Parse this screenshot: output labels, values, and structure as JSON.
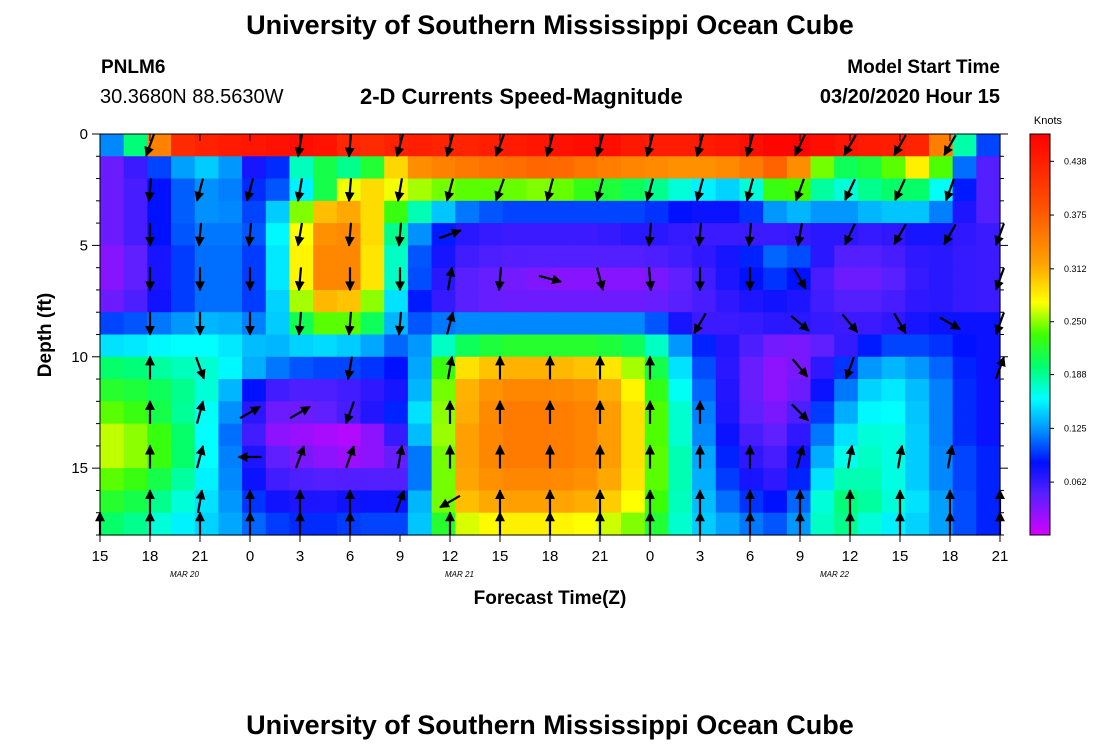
{
  "header": {
    "title": "University of Southern Mississippi Ocean Cube",
    "station_id": "PNLM6",
    "coordinates": "30.3680N 88.5630W",
    "subtitle": "2-D Currents Speed-Magnitude",
    "model_start_label": "Model Start Time",
    "model_start_value": "03/20/2020 Hour 15"
  },
  "footer": {
    "title": "University of Southern Mississippi Ocean Cube"
  },
  "chart_data": {
    "type": "heatmap",
    "xlabel": "Forecast Time(Z)",
    "ylabel": "Depth (ft)",
    "colorbar_label": "Knots",
    "x_ticks": [
      "15",
      "18",
      "21",
      "0",
      "3",
      "6",
      "9",
      "12",
      "15",
      "18",
      "21",
      "0",
      "3",
      "6",
      "9",
      "12",
      "15",
      "18",
      "21"
    ],
    "date_labels": [
      "MAR 20",
      "MAR 21",
      "MAR 22"
    ],
    "y_ticks": [
      0,
      5,
      10,
      15
    ],
    "ylim": [
      18,
      0
    ],
    "colorbar_ticks": [
      "0.062",
      "0.125",
      "0.188",
      "0.250",
      "0.312",
      "0.375",
      "0.438"
    ],
    "colorbar_range": [
      0,
      0.47
    ],
    "depth_rows_ft": [
      0.5,
      1.5,
      2.5,
      3.5,
      4.5,
      5.5,
      6.5,
      7.5,
      8.5,
      9.5,
      10.5,
      11.5,
      12.5,
      13.5,
      14.5,
      15.5,
      16.5,
      17.5
    ],
    "speed_knots_by_depth": [
      [
        0.12,
        0.42,
        0.44,
        0.45,
        0.46,
        0.42,
        0.44,
        0.43,
        0.44,
        0.45,
        0.46,
        0.44,
        0.44,
        0.45,
        0.47,
        0.45,
        0.44,
        0.43,
        0.1
      ],
      [
        0.04,
        0.12,
        0.15,
        0.05,
        0.22,
        0.18,
        0.33,
        0.35,
        0.36,
        0.37,
        0.35,
        0.34,
        0.33,
        0.34,
        0.38,
        0.2,
        0.22,
        0.3,
        0.05
      ],
      [
        0.04,
        0.1,
        0.13,
        0.08,
        0.18,
        0.3,
        0.26,
        0.24,
        0.24,
        0.25,
        0.22,
        0.2,
        0.16,
        0.14,
        0.26,
        0.16,
        0.2,
        0.2,
        0.05
      ],
      [
        0.04,
        0.1,
        0.13,
        0.09,
        0.3,
        0.32,
        0.2,
        0.12,
        0.1,
        0.1,
        0.1,
        0.1,
        0.08,
        0.08,
        0.14,
        0.12,
        0.14,
        0.14,
        0.05
      ],
      [
        0.04,
        0.1,
        0.12,
        0.1,
        0.33,
        0.34,
        0.14,
        0.07,
        0.06,
        0.06,
        0.06,
        0.07,
        0.06,
        0.06,
        0.06,
        0.07,
        0.06,
        0.08,
        0.06
      ],
      [
        0.03,
        0.09,
        0.12,
        0.09,
        0.34,
        0.34,
        0.12,
        0.06,
        0.05,
        0.05,
        0.05,
        0.05,
        0.06,
        0.08,
        0.12,
        0.05,
        0.05,
        0.07,
        0.06
      ],
      [
        0.03,
        0.09,
        0.12,
        0.09,
        0.34,
        0.34,
        0.12,
        0.05,
        0.04,
        0.03,
        0.03,
        0.03,
        0.05,
        0.08,
        0.1,
        0.04,
        0.04,
        0.07,
        0.06
      ],
      [
        0.04,
        0.09,
        0.12,
        0.09,
        0.31,
        0.3,
        0.1,
        0.05,
        0.04,
        0.04,
        0.04,
        0.04,
        0.05,
        0.07,
        0.08,
        0.05,
        0.05,
        0.07,
        0.06
      ],
      [
        0.1,
        0.12,
        0.14,
        0.11,
        0.24,
        0.24,
        0.1,
        0.12,
        0.12,
        0.12,
        0.12,
        0.12,
        0.06,
        0.06,
        0.07,
        0.06,
        0.06,
        0.08,
        0.08
      ],
      [
        0.15,
        0.16,
        0.16,
        0.13,
        0.15,
        0.14,
        0.1,
        0.2,
        0.22,
        0.22,
        0.22,
        0.2,
        0.1,
        0.06,
        0.03,
        0.05,
        0.1,
        0.1,
        0.08
      ],
      [
        0.2,
        0.18,
        0.17,
        0.12,
        0.1,
        0.1,
        0.08,
        0.28,
        0.31,
        0.31,
        0.3,
        0.24,
        0.12,
        0.05,
        0.02,
        0.08,
        0.14,
        0.12,
        0.08
      ],
      [
        0.22,
        0.2,
        0.16,
        0.06,
        0.05,
        0.06,
        0.08,
        0.3,
        0.34,
        0.34,
        0.33,
        0.26,
        0.13,
        0.05,
        0.02,
        0.1,
        0.16,
        0.13,
        0.08
      ],
      [
        0.24,
        0.2,
        0.15,
        0.04,
        0.04,
        0.06,
        0.1,
        0.3,
        0.35,
        0.35,
        0.34,
        0.27,
        0.14,
        0.05,
        0.03,
        0.12,
        0.17,
        0.13,
        0.08
      ],
      [
        0.26,
        0.22,
        0.14,
        0.03,
        0.02,
        0.01,
        0.08,
        0.31,
        0.35,
        0.35,
        0.34,
        0.27,
        0.14,
        0.06,
        0.04,
        0.14,
        0.18,
        0.13,
        0.08
      ],
      [
        0.26,
        0.22,
        0.14,
        0.05,
        0.03,
        0.02,
        0.05,
        0.31,
        0.35,
        0.35,
        0.34,
        0.27,
        0.15,
        0.07,
        0.05,
        0.16,
        0.18,
        0.13,
        0.09
      ],
      [
        0.24,
        0.2,
        0.14,
        0.06,
        0.05,
        0.05,
        0.05,
        0.31,
        0.34,
        0.34,
        0.33,
        0.27,
        0.15,
        0.08,
        0.06,
        0.18,
        0.18,
        0.13,
        0.09
      ],
      [
        0.22,
        0.18,
        0.14,
        0.08,
        0.07,
        0.08,
        0.08,
        0.3,
        0.32,
        0.32,
        0.31,
        0.26,
        0.15,
        0.1,
        0.08,
        0.2,
        0.18,
        0.14,
        0.09
      ],
      [
        0.2,
        0.16,
        0.14,
        0.1,
        0.09,
        0.1,
        0.1,
        0.26,
        0.28,
        0.28,
        0.27,
        0.24,
        0.15,
        0.12,
        0.1,
        0.2,
        0.16,
        0.14,
        0.09
      ]
    ],
    "vector_depths_ft": [
      0.5,
      2.5,
      4.5,
      6.5,
      8.5,
      10.5,
      12.5,
      14.5,
      16.5,
      17.5
    ],
    "vector_direction_deg": [
      [
        null,
        200,
        null,
        null,
        190,
        185,
        195,
        195,
        200,
        195,
        195,
        195,
        195,
        195,
        205,
        210,
        210,
        210,
        null
      ],
      [
        null,
        185,
        195,
        195,
        190,
        185,
        190,
        195,
        200,
        195,
        195,
        195,
        195,
        195,
        200,
        205,
        205,
        200,
        null
      ],
      [
        null,
        180,
        185,
        185,
        190,
        185,
        185,
        70,
        null,
        null,
        null,
        185,
        185,
        185,
        190,
        205,
        210,
        210,
        200
      ],
      [
        null,
        180,
        180,
        180,
        185,
        180,
        180,
        10,
        185,
        105,
        165,
        175,
        180,
        180,
        150,
        null,
        null,
        null,
        200
      ],
      [
        null,
        180,
        180,
        180,
        185,
        185,
        185,
        15,
        null,
        null,
        null,
        null,
        210,
        null,
        130,
        140,
        150,
        120,
        200
      ],
      [
        null,
        0,
        160,
        null,
        null,
        190,
        null,
        10,
        0,
        0,
        0,
        0,
        null,
        null,
        140,
        200,
        null,
        null,
        20
      ],
      [
        null,
        0,
        15,
        60,
        60,
        200,
        null,
        0,
        0,
        0,
        0,
        0,
        0,
        null,
        135,
        null,
        null,
        null,
        null
      ],
      [
        null,
        0,
        15,
        270,
        20,
        20,
        10,
        0,
        0,
        0,
        0,
        0,
        0,
        0,
        15,
        10,
        10,
        10,
        null
      ],
      [
        null,
        0,
        10,
        0,
        0,
        0,
        20,
        240,
        0,
        0,
        0,
        0,
        0,
        0,
        0,
        0,
        0,
        0,
        0
      ],
      [
        0,
        0,
        0,
        0,
        0,
        0,
        null,
        0,
        0,
        0,
        0,
        0,
        0,
        0,
        0,
        0,
        0,
        0,
        0
      ]
    ]
  }
}
